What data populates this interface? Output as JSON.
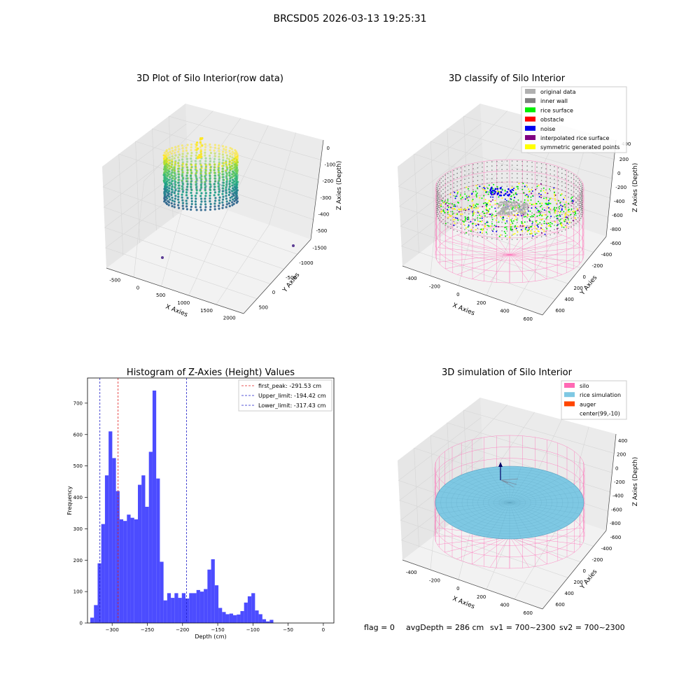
{
  "figure": {
    "suptitle": "BRCSD05 2026-03-13 19:25:31",
    "footer": {
      "flag": "flag = 0",
      "avg_depth": "avgDepth = 286 cm",
      "sv1": "sv1 = 700~2300",
      "sv2": "sv2 = 700~2300"
    }
  },
  "colors": {
    "hist_bar": "#4c4cff",
    "first_peak": "#e02020",
    "limit_line": "#2020c8",
    "silo_wire": "#ff69b4",
    "rice_sim": "#7ec8e3",
    "auger": "#ff4500",
    "noise": "#0000ee",
    "rice_surface": "#00ee00",
    "symmetric": "#ffff00",
    "inner_wall": "#808080",
    "original": "#b0b0b0"
  },
  "chart_data": [
    {
      "type": "scatter",
      "projection": "3d",
      "title": "3D Plot of Silo Interior(row data)",
      "xlabel": "X Axies",
      "ylabel": "Y Axies",
      "zlabel": "Z Axies (Depth)",
      "x_ticks": [
        "-500",
        "0",
        "500",
        "1000",
        "1500",
        "2000"
      ],
      "y_ticks": [
        "500",
        "0",
        "-500",
        "-1000",
        "-1500"
      ],
      "z_ticks": [
        "0",
        "-100",
        "-200",
        "-300",
        "-400",
        "-500"
      ],
      "colormap": "viridis",
      "outliers": [
        {
          "x": 70,
          "y": -1500,
          "z": -560
        },
        {
          "x": 1990,
          "y": 500,
          "z": -560
        }
      ]
    },
    {
      "type": "scatter",
      "projection": "3d",
      "title": "3D classify of Silo Interior",
      "xlabel": "X Axies",
      "ylabel": "Y Axies",
      "zlabel": "Z Axies (Depth)",
      "x_ticks": [
        "-400",
        "-200",
        "0",
        "200",
        "400",
        "600"
      ],
      "y_ticks": [
        "600",
        "400",
        "200",
        "0",
        "-200",
        "-400",
        "-600"
      ],
      "z_ticks": [
        "200",
        "0",
        "-200",
        "-400",
        "-600",
        "-800"
      ],
      "z_ticks_partial": [
        "400"
      ],
      "legend_position": "top-right",
      "legend": [
        {
          "label": "original data",
          "color": "#b0b0b0"
        },
        {
          "label": "inner wall",
          "color": "#808080"
        },
        {
          "label": "rice surface",
          "color": "#00ee00"
        },
        {
          "label": "obstacle",
          "color": "#ff0000"
        },
        {
          "label": "noise",
          "color": "#0000ee"
        },
        {
          "label": "interpolated rice surface",
          "color": "#800080"
        },
        {
          "label": "symmetric generated points",
          "color": "#ffff00"
        }
      ]
    },
    {
      "type": "bar",
      "title": "Histogram of Z-Axies (Height) Values",
      "xlabel": "Depth (cm)",
      "ylabel": "Frequency",
      "xlim": [
        -335,
        15
      ],
      "ylim": [
        0,
        780
      ],
      "x_ticks": [
        -300,
        -250,
        -200,
        -150,
        -100,
        -50,
        0
      ],
      "y_ticks": [
        0,
        100,
        200,
        300,
        400,
        500,
        600,
        700
      ],
      "bin_start": -331,
      "bin_width": 5.2,
      "values": [
        17,
        57,
        190,
        315,
        470,
        610,
        525,
        420,
        330,
        325,
        345,
        335,
        330,
        440,
        470,
        370,
        545,
        740,
        460,
        195,
        72,
        95,
        80,
        95,
        80,
        95,
        78,
        95,
        95,
        105,
        100,
        108,
        170,
        203,
        120,
        48,
        35,
        28,
        30,
        25,
        27,
        38,
        65,
        85,
        95,
        40,
        28,
        12,
        5,
        10
      ],
      "legend_position": "top-right",
      "vlines": [
        {
          "label": "first_peak: -291.53 cm",
          "x": -291.53,
          "color": "#e02020"
        },
        {
          "label": "Upper_limit: -194.42 cm",
          "x": -194.42,
          "color": "#2020c8"
        },
        {
          "label": "Lower_limit: -317.43 cm",
          "x": -317.43,
          "color": "#2020c8"
        }
      ]
    },
    {
      "type": "scatter",
      "projection": "3d",
      "title": "3D simulation of Silo Interior",
      "xlabel": "X Axies",
      "ylabel": "Y Axies",
      "zlabel": "Z Axies (Depth)",
      "x_ticks": [
        "-400",
        "-200",
        "0",
        "200",
        "400",
        "600"
      ],
      "y_ticks": [
        "600",
        "400",
        "200",
        "0",
        "-200",
        "-400",
        "-600"
      ],
      "z_ticks": [
        "400",
        "200",
        "0",
        "-200",
        "-400",
        "-600",
        "-800"
      ],
      "legend_position": "top-right",
      "legend": [
        {
          "label": "silo",
          "color": "#ff69b4"
        },
        {
          "label": "rice simulation",
          "color": "#7ec8e3"
        },
        {
          "label": "auger",
          "color": "#ff4500"
        },
        {
          "label": "center(99,-10)",
          "color": ""
        }
      ]
    }
  ]
}
